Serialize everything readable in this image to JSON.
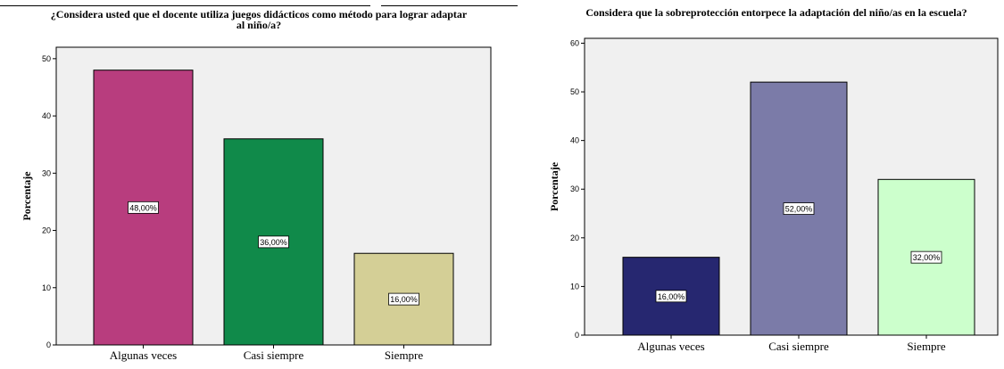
{
  "chart_data": [
    {
      "type": "bar",
      "title": "¿Considera usted que el docente utiliza juegos didácticos como método para lograr adaptar al niño/a?",
      "title_lines": [
        "¿Considera usted que el docente utiliza juegos didácticos como método para lograr adaptar",
        "al niño/a?"
      ],
      "xlabel": "",
      "ylabel": "Porcentaje",
      "categories": [
        "Algunas veces",
        "Casi siempre",
        "Siempre"
      ],
      "values": [
        48,
        36,
        16
      ],
      "data_labels": [
        "48,00%",
        "36,00%",
        "16,00%"
      ],
      "bar_colors": [
        "#b83d7e",
        "#108a4a",
        "#d4cf96"
      ],
      "ylim": [
        0,
        52
      ],
      "yticks": [
        0,
        10,
        20,
        30,
        40,
        50
      ],
      "plot_background": "#f0f0f0",
      "grid": false
    },
    {
      "type": "bar",
      "title": "Considera que la sobreprotección entorpece la adaptación del niño/as en la escuela?",
      "title_lines": [
        "Considera que la sobreprotección entorpece la adaptación del niño/as en la escuela?"
      ],
      "xlabel": "",
      "ylabel": "Porcentaje",
      "categories": [
        "Algunas veces",
        "Casi siempre",
        "Siempre"
      ],
      "values": [
        16,
        52,
        32
      ],
      "data_labels": [
        "16,00%",
        "52,00%",
        "32,00%"
      ],
      "bar_colors": [
        "#262770",
        "#7b7ba8",
        "#ccffcc"
      ],
      "ylim": [
        0,
        61
      ],
      "yticks": [
        0,
        10,
        20,
        30,
        40,
        50,
        60
      ],
      "plot_background": "#f0f0f0",
      "grid": false
    }
  ]
}
